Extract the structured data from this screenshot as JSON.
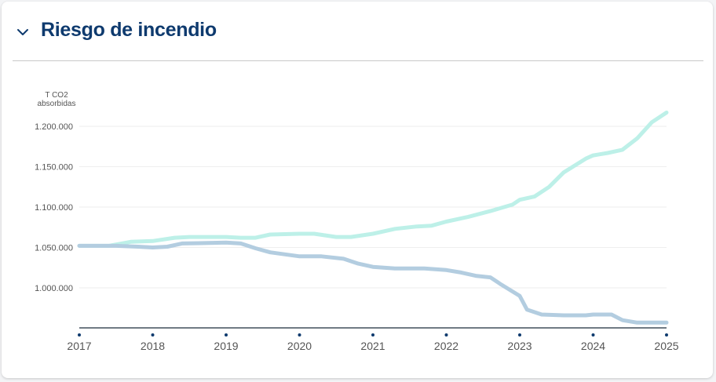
{
  "section": {
    "title": "Riesgo de incendio",
    "toggle_icon": "chevron-down-icon"
  },
  "colors": {
    "series1": "#bdf0e8",
    "series2": "#b3cde0",
    "title": "#0e3a6e",
    "axis": "#1a2a3a",
    "dot": "#0e3a6e"
  },
  "chart_data": {
    "type": "line",
    "ylabel_lines": [
      "T CO2",
      "absorbidas"
    ],
    "xlabel": "",
    "xlim": [
      2017,
      2025
    ],
    "ylim": [
      950000,
      1220000
    ],
    "x_ticks": [
      "2017",
      "2018",
      "2019",
      "2020",
      "2021",
      "2022",
      "2023",
      "2024",
      "2025"
    ],
    "y_ticks": [
      {
        "value": 1000000,
        "label": "1.000.000"
      },
      {
        "value": 1050000,
        "label": "1.050.000"
      },
      {
        "value": 1100000,
        "label": "1.100.000"
      },
      {
        "value": 1150000,
        "label": "1.150.000"
      },
      {
        "value": 1200000,
        "label": "1.200.000"
      }
    ],
    "grid": true,
    "series": [
      {
        "color": "#bdf0e8",
        "x": [
          2017,
          2017.4,
          2017.7,
          2018,
          2018.3,
          2018.5,
          2019,
          2019.2,
          2019.4,
          2019.6,
          2020,
          2020.2,
          2020.5,
          2020.7,
          2021,
          2021.3,
          2021.6,
          2021.8,
          2022,
          2022.3,
          2022.6,
          2022.9,
          2023,
          2023.2,
          2023.4,
          2023.6,
          2023.9,
          2024,
          2024.2,
          2024.4,
          2024.6,
          2024.8,
          2025
        ],
        "y": [
          1052000,
          1052000,
          1057000,
          1058000,
          1062000,
          1063000,
          1063000,
          1062000,
          1062000,
          1066000,
          1067000,
          1067000,
          1063000,
          1063000,
          1067000,
          1073000,
          1076000,
          1077000,
          1082000,
          1088000,
          1095000,
          1103000,
          1109000,
          1113000,
          1125000,
          1143000,
          1160000,
          1164000,
          1167000,
          1171000,
          1185000,
          1205000,
          1217000
        ]
      },
      {
        "color": "#b3cde0",
        "x": [
          2017,
          2017.5,
          2017.8,
          2018,
          2018.2,
          2018.4,
          2019,
          2019.2,
          2019.4,
          2019.6,
          2020,
          2020.3,
          2020.6,
          2020.8,
          2021,
          2021.3,
          2021.7,
          2022,
          2022.2,
          2022.4,
          2022.6,
          2022.75,
          2023,
          2023.1,
          2023.3,
          2023.6,
          2023.9,
          2024,
          2024.25,
          2024.4,
          2024.6,
          2025
        ],
        "y": [
          1052000,
          1052000,
          1051000,
          1050000,
          1051000,
          1055000,
          1056000,
          1055000,
          1049000,
          1044000,
          1039000,
          1039000,
          1036000,
          1030000,
          1026000,
          1024000,
          1024000,
          1022000,
          1019000,
          1015000,
          1013000,
          1004000,
          990000,
          973000,
          967000,
          966000,
          966000,
          967000,
          967000,
          960000,
          957000,
          957000
        ]
      }
    ]
  }
}
